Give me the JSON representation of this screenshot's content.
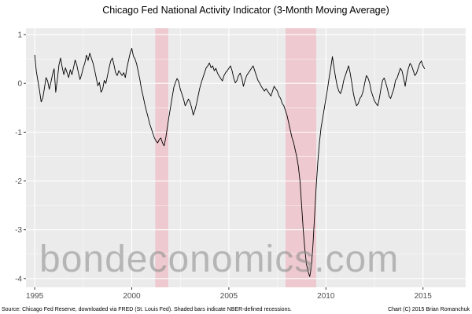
{
  "watermark": "bondeconomics.com",
  "footer": {
    "source": "Source: Chicago Fed Reserve, downloaded via FRED (St. Louis Fed). Shaded bars indicate NBER-defined recessions.",
    "copyright": "Chart (C) 2015 Brian Romanchuk"
  },
  "chart_data": {
    "type": "line",
    "title": "Chicago Fed National Activity Indicator (3-Month Moving Average)",
    "xlabel": "",
    "ylabel": "",
    "xlim": [
      1994.55,
      2017.2
    ],
    "ylim": [
      -4.18,
      1.13
    ],
    "x_ticks": [
      1995,
      2000,
      2005,
      2010,
      2015
    ],
    "x_minor_ticks": [
      1997.5,
      2002.5,
      2007.5,
      2012.5
    ],
    "y_ticks": [
      1,
      0,
      -1,
      -2,
      -3,
      -4
    ],
    "y_minor_ticks": [
      0.5,
      -0.5,
      -1.5,
      -2.5,
      -3.5
    ],
    "grid": true,
    "legend": "none",
    "x_start": 1995.0,
    "points_per_year": 12,
    "recessions": [
      {
        "start": 2001.21,
        "end": 2001.88
      },
      {
        "start": 2007.92,
        "end": 2009.5
      }
    ],
    "colors": {
      "panel": "#ebebeb",
      "grid_major": "#ffffff",
      "grid_minor": "#ffffff",
      "line": "#000000",
      "recession": "#efb7c0",
      "tick_label": "#4d4d4d",
      "watermark": "#8a8a8a"
    },
    "values": [
      0.58,
      0.25,
      0.05,
      -0.15,
      -0.38,
      -0.3,
      -0.1,
      0.12,
      0.05,
      -0.12,
      0.02,
      0.18,
      0.3,
      -0.18,
      0.08,
      0.38,
      0.52,
      0.33,
      0.18,
      0.32,
      0.22,
      0.12,
      0.28,
      0.18,
      0.32,
      0.48,
      0.38,
      0.22,
      0.08,
      0.18,
      0.32,
      0.42,
      0.58,
      0.47,
      0.62,
      0.52,
      0.42,
      0.28,
      0.12,
      -0.05,
      0.02,
      -0.18,
      -0.12,
      0.06,
      0.0,
      0.16,
      0.32,
      0.46,
      0.52,
      0.38,
      0.22,
      0.16,
      0.26,
      0.21,
      0.16,
      0.22,
      0.12,
      0.32,
      0.47,
      0.62,
      0.72,
      0.56,
      0.5,
      0.4,
      0.24,
      0.08,
      -0.12,
      -0.26,
      -0.42,
      -0.56,
      -0.68,
      -0.82,
      -0.92,
      -1.02,
      -1.12,
      -1.18,
      -1.22,
      -1.15,
      -1.12,
      -1.22,
      -1.28,
      -1.12,
      -0.9,
      -0.68,
      -0.48,
      -0.28,
      -0.08,
      0.02,
      0.1,
      0.04,
      -0.12,
      -0.22,
      -0.32,
      -0.46,
      -0.4,
      -0.32,
      -0.38,
      -0.5,
      -0.65,
      -0.55,
      -0.42,
      -0.26,
      -0.1,
      0.02,
      0.12,
      0.22,
      0.32,
      0.36,
      0.42,
      0.32,
      0.36,
      0.26,
      0.31,
      0.21,
      0.15,
      0.1,
      0.05,
      0.16,
      0.22,
      0.26,
      0.31,
      0.36,
      0.26,
      0.11,
      0.01,
      0.06,
      0.16,
      0.21,
      0.11,
      -0.06,
      0.06,
      0.16,
      0.21,
      0.26,
      0.31,
      0.36,
      0.26,
      0.16,
      0.06,
      0.01,
      -0.06,
      -0.11,
      -0.16,
      -0.11,
      -0.16,
      -0.21,
      -0.26,
      -0.16,
      -0.06,
      -0.11,
      -0.16,
      -0.26,
      -0.31,
      -0.41,
      -0.46,
      -0.56,
      -0.66,
      -0.81,
      -0.96,
      -1.11,
      -1.21,
      -1.36,
      -1.51,
      -1.71,
      -2.01,
      -2.51,
      -3.01,
      -3.41,
      -3.71,
      -3.86,
      -3.96,
      -3.76,
      -3.31,
      -2.71,
      -2.11,
      -1.61,
      -1.21,
      -0.91,
      -0.71,
      -0.51,
      -0.31,
      -0.11,
      0.12,
      0.32,
      0.55,
      0.32,
      0.12,
      -0.06,
      -0.16,
      -0.21,
      -0.11,
      0.06,
      0.16,
      0.26,
      0.36,
      0.21,
      0.01,
      -0.21,
      -0.36,
      -0.46,
      -0.41,
      -0.31,
      -0.26,
      -0.16,
      0.01,
      0.16,
      0.11,
      0.01,
      -0.16,
      -0.26,
      -0.36,
      -0.41,
      -0.46,
      -0.31,
      -0.11,
      0.06,
      0.11,
      0.01,
      -0.11,
      -0.26,
      -0.31,
      -0.21,
      -0.11,
      0.06,
      0.11,
      0.21,
      0.31,
      0.26,
      0.11,
      -0.06,
      0.16,
      0.31,
      0.41,
      0.36,
      0.26,
      0.16,
      0.21,
      0.31,
      0.41,
      0.46,
      0.36,
      0.3
    ]
  }
}
